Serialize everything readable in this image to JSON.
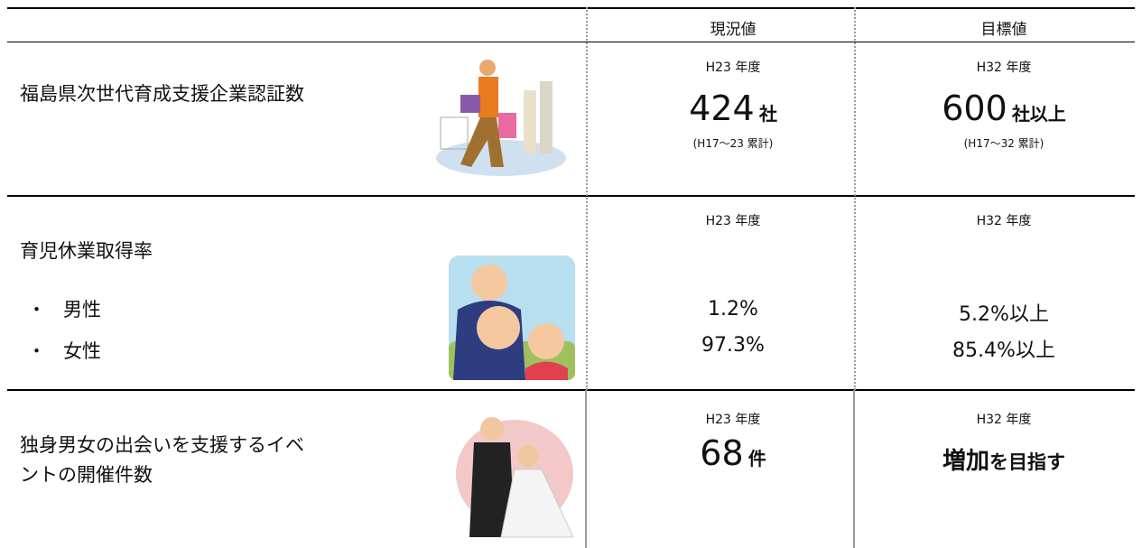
{
  "table": {
    "headers": [
      "現況値",
      "目標値"
    ],
    "rows": [
      {
        "label": [
          "福島県次世代育成支援企業認証数"
        ],
        "current": {
          "year": "H23 年度",
          "value": "424",
          "unit": "社",
          "note": "(H17〜23 累計)"
        },
        "target": {
          "year": "H32 年度",
          "value": "600",
          "unit": "社以上",
          "note": "(H17〜32 累計)"
        }
      },
      {
        "label": [
          "育児休業取得率"
        ],
        "bullet": "・",
        "items": [
          "男性",
          "女性"
        ],
        "current": {
          "year": "H23 年度",
          "values": [
            "1.2%",
            "97.3%"
          ]
        },
        "target": {
          "year": "H32 年度",
          "values": [
            "5.2%以上",
            "85.4%以上"
          ]
        }
      },
      {
        "label": [
          "独身男女の出会いを支援するイベ",
          "ントの開催件数"
        ],
        "current": {
          "year": "H23 年度",
          "value": "68",
          "unit": "件"
        },
        "target": {
          "year": "H32 年度",
          "emphasis": "増加",
          "rest": "を目指す"
        }
      }
    ]
  }
}
